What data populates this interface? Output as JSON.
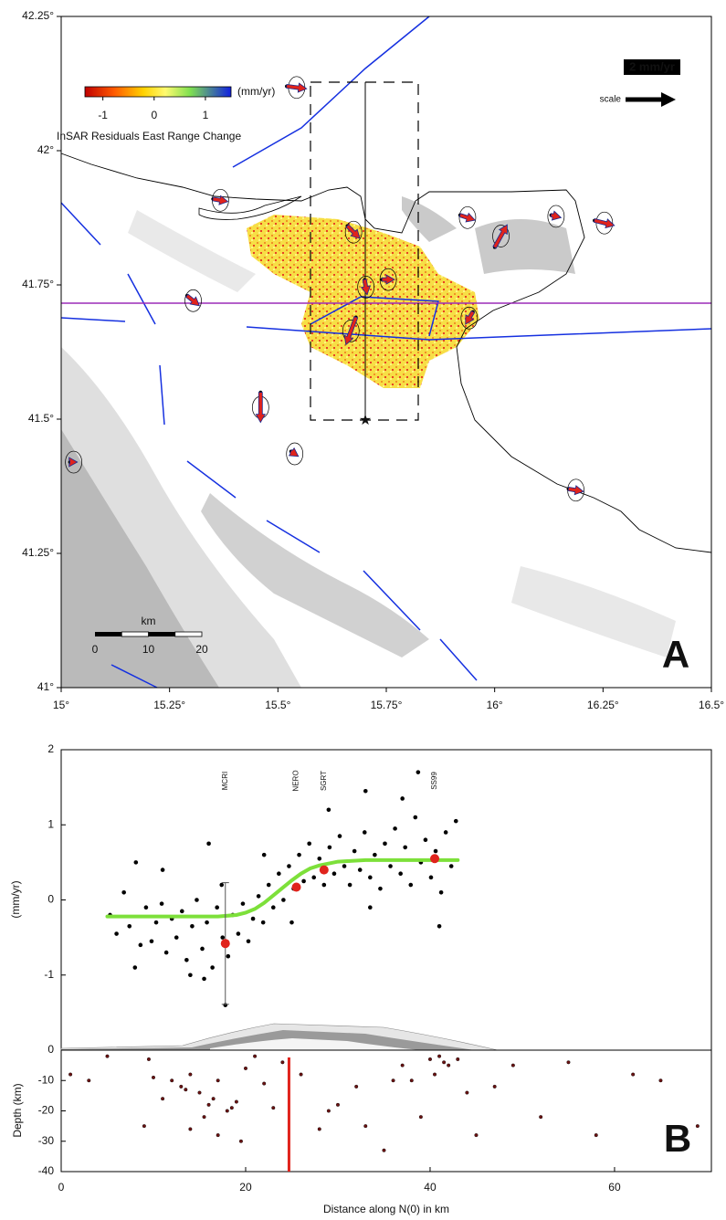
{
  "chart_data": [
    {
      "type": "map",
      "xlim": [
        15,
        16.5
      ],
      "ylim": [
        41,
        42.25
      ],
      "xticks": [
        {
          "value": 15,
          "label": "15°"
        },
        {
          "value": 15.25,
          "label": "15.25°"
        },
        {
          "value": 15.5,
          "label": "15.5°"
        },
        {
          "value": 15.75,
          "label": "15.75°"
        },
        {
          "value": 16,
          "label": "16°"
        },
        {
          "value": 16.25,
          "label": "16.25°"
        },
        {
          "value": 16.5,
          "label": "16.5°"
        }
      ],
      "yticks": [
        {
          "value": 41,
          "label": "41°"
        },
        {
          "value": 41.25,
          "label": "41.25°"
        },
        {
          "value": 41.5,
          "label": "41.5°"
        },
        {
          "value": 41.75,
          "label": "41.75°"
        },
        {
          "value": 42,
          "label": "42°"
        },
        {
          "value": 42.25,
          "label": "42.25°"
        }
      ],
      "colorbar": {
        "label": "(mm/yr)",
        "lim": [
          -1.35,
          1.5
        ],
        "ticks": [
          -1,
          0,
          1
        ]
      },
      "colorbar_title": "InSAR Residuals East Range Change",
      "gps": {
        "color": "#e0231c",
        "lon": [
          15.52,
          15.35,
          15.29,
          15.66,
          15.7,
          15.74,
          15.68,
          15.46,
          15.53,
          15.02,
          15.92,
          16.0,
          16.13,
          16.23,
          16.17,
          15.95
        ],
        "lat": [
          42.12,
          41.91,
          41.73,
          41.86,
          41.76,
          41.76,
          41.69,
          41.55,
          41.44,
          41.42,
          41.88,
          41.82,
          41.88,
          41.87,
          41.37,
          41.7
        ],
        "ve": [
          0.8,
          0.6,
          0.5,
          0.5,
          0.1,
          0.5,
          -0.4,
          0.0,
          0.3,
          0.3,
          0.6,
          0.5,
          0.4,
          0.8,
          0.6,
          -0.3
        ],
        "vn": [
          -0.1,
          -0.1,
          -0.4,
          -0.5,
          -0.6,
          0.0,
          -1.1,
          -1.2,
          -0.2,
          0.0,
          -0.2,
          0.9,
          -0.1,
          -0.2,
          -0.1,
          -0.5
        ]
      },
      "scale_arrow": {
        "value": 2,
        "label": "2 mm/yr",
        "text": "scale"
      },
      "scalebar": {
        "label": "km",
        "ticks": [
          0,
          10,
          20
        ]
      },
      "panel_label": "A"
    },
    {
      "type": "scatter",
      "xlim": [
        0,
        70.5
      ],
      "xticks": [
        0,
        20,
        40,
        60
      ],
      "ylim": [
        -2,
        2
      ],
      "yticks": [
        -1,
        0,
        1,
        2
      ],
      "xlabel": "Distance along N(0) in km",
      "ylabel": "(mm/yr)",
      "x": [
        5.3,
        6,
        6.8,
        7.4,
        8.1,
        8.6,
        9.2,
        9.8,
        10.3,
        10.9,
        11.4,
        12,
        12.5,
        13.1,
        13.6,
        14.2,
        14.7,
        15.3,
        15.8,
        16.4,
        16.9,
        17.5,
        18.1,
        18.6,
        19.2,
        19.7,
        20.3,
        20.8,
        21.4,
        21.9,
        22.5,
        23,
        23.6,
        24.1,
        24.7,
        25.2,
        25.8,
        26.3,
        26.9,
        27.4,
        28,
        28.5,
        29.1,
        29.6,
        30.2,
        30.7,
        31.3,
        31.8,
        32.4,
        32.9,
        33.5,
        34,
        34.6,
        35.1,
        35.7,
        36.2,
        36.8,
        37.3,
        37.9,
        38.4,
        39,
        39.5,
        40.1,
        40.6,
        41.2,
        41.7,
        42.3,
        42.8,
        8,
        11,
        14,
        16,
        17.8,
        22,
        25,
        29,
        33,
        37,
        41,
        15.5,
        17.4,
        33.5,
        38.7
      ],
      "values": [
        -0.2,
        -0.45,
        0.1,
        -0.35,
        0.5,
        -0.6,
        -0.1,
        -0.55,
        -0.3,
        -0.05,
        -0.7,
        -0.25,
        -0.5,
        -0.15,
        -0.8,
        -0.35,
        0.0,
        -0.65,
        -0.3,
        -0.9,
        -0.1,
        -0.5,
        -0.75,
        -0.2,
        -0.45,
        -0.05,
        -0.55,
        -0.25,
        0.05,
        -0.3,
        0.2,
        -0.1,
        0.35,
        0.0,
        0.45,
        0.15,
        0.6,
        0.25,
        0.75,
        0.3,
        0.55,
        0.2,
        0.7,
        0.35,
        0.85,
        0.45,
        0.2,
        0.65,
        0.4,
        0.9,
        0.3,
        0.6,
        0.15,
        0.75,
        0.45,
        0.95,
        0.35,
        0.7,
        0.2,
        1.1,
        0.5,
        0.8,
        0.3,
        0.65,
        0.1,
        0.9,
        0.45,
        1.05,
        -0.9,
        0.4,
        -1.0,
        0.75,
        -1.4,
        0.6,
        -0.3,
        1.2,
        1.45,
        1.35,
        -0.35,
        -1.05,
        0.2,
        -0.1,
        1.7
      ],
      "stations": {
        "names": [
          "MCRI",
          "NERO",
          "SGRT",
          "SS99"
        ],
        "x": [
          17.8,
          25.5,
          28.5,
          40.5
        ],
        "values": [
          -0.58,
          0.17,
          0.4,
          0.55
        ],
        "errors": [
          0.81,
          null,
          null,
          null
        ],
        "color": "#e0231c"
      },
      "fit": {
        "color": "#7de03a",
        "x": [
          5,
          7,
          9,
          11,
          13,
          15,
          17,
          19,
          20,
          21,
          22,
          23,
          24,
          25,
          26,
          27,
          28,
          30,
          33,
          36,
          40,
          43
        ],
        "values": [
          -0.22,
          -0.22,
          -0.22,
          -0.22,
          -0.22,
          -0.22,
          -0.22,
          -0.2,
          -0.17,
          -0.12,
          -0.04,
          0.06,
          0.16,
          0.26,
          0.35,
          0.42,
          0.46,
          0.51,
          0.53,
          0.53,
          0.53,
          0.53
        ]
      },
      "depth": {
        "ylabel": "Depth (km)",
        "ylim": [
          -40,
          0
        ],
        "yticks": [
          0,
          -10,
          -20,
          -30,
          -40
        ],
        "color": "#6b1212",
        "x": [
          1,
          3,
          5,
          9,
          10,
          12,
          13,
          14,
          15,
          16,
          17,
          18,
          19,
          20,
          21,
          22,
          23,
          13.5,
          15.5,
          16.5,
          18.5,
          14,
          17,
          19.5,
          26,
          28,
          30,
          32,
          33,
          35,
          36,
          37,
          38,
          39,
          40,
          41,
          42,
          43,
          44,
          45,
          47,
          49,
          52,
          55,
          58,
          62,
          65,
          69,
          9.5,
          29,
          40.5,
          41.5,
          11,
          24
        ],
        "values": [
          -8,
          -10,
          -2,
          -25,
          -9,
          -10,
          -12,
          -8,
          -14,
          -18,
          -10,
          -20,
          -17,
          -6,
          -2,
          -11,
          -19,
          -13,
          -22,
          -16,
          -19,
          -26,
          -28,
          -30,
          -8,
          -26,
          -18,
          -12,
          -25,
          -33,
          -10,
          -5,
          -10,
          -22,
          -3,
          -2,
          -5,
          -3,
          -14,
          -28,
          -12,
          -5,
          -22,
          -4,
          -28,
          -8,
          -10,
          -25,
          -3,
          -20,
          -8,
          -4,
          -16,
          -4
        ]
      },
      "fault_x": 24.7,
      "fault_color": "#e0231c",
      "panel_label": "B"
    }
  ]
}
